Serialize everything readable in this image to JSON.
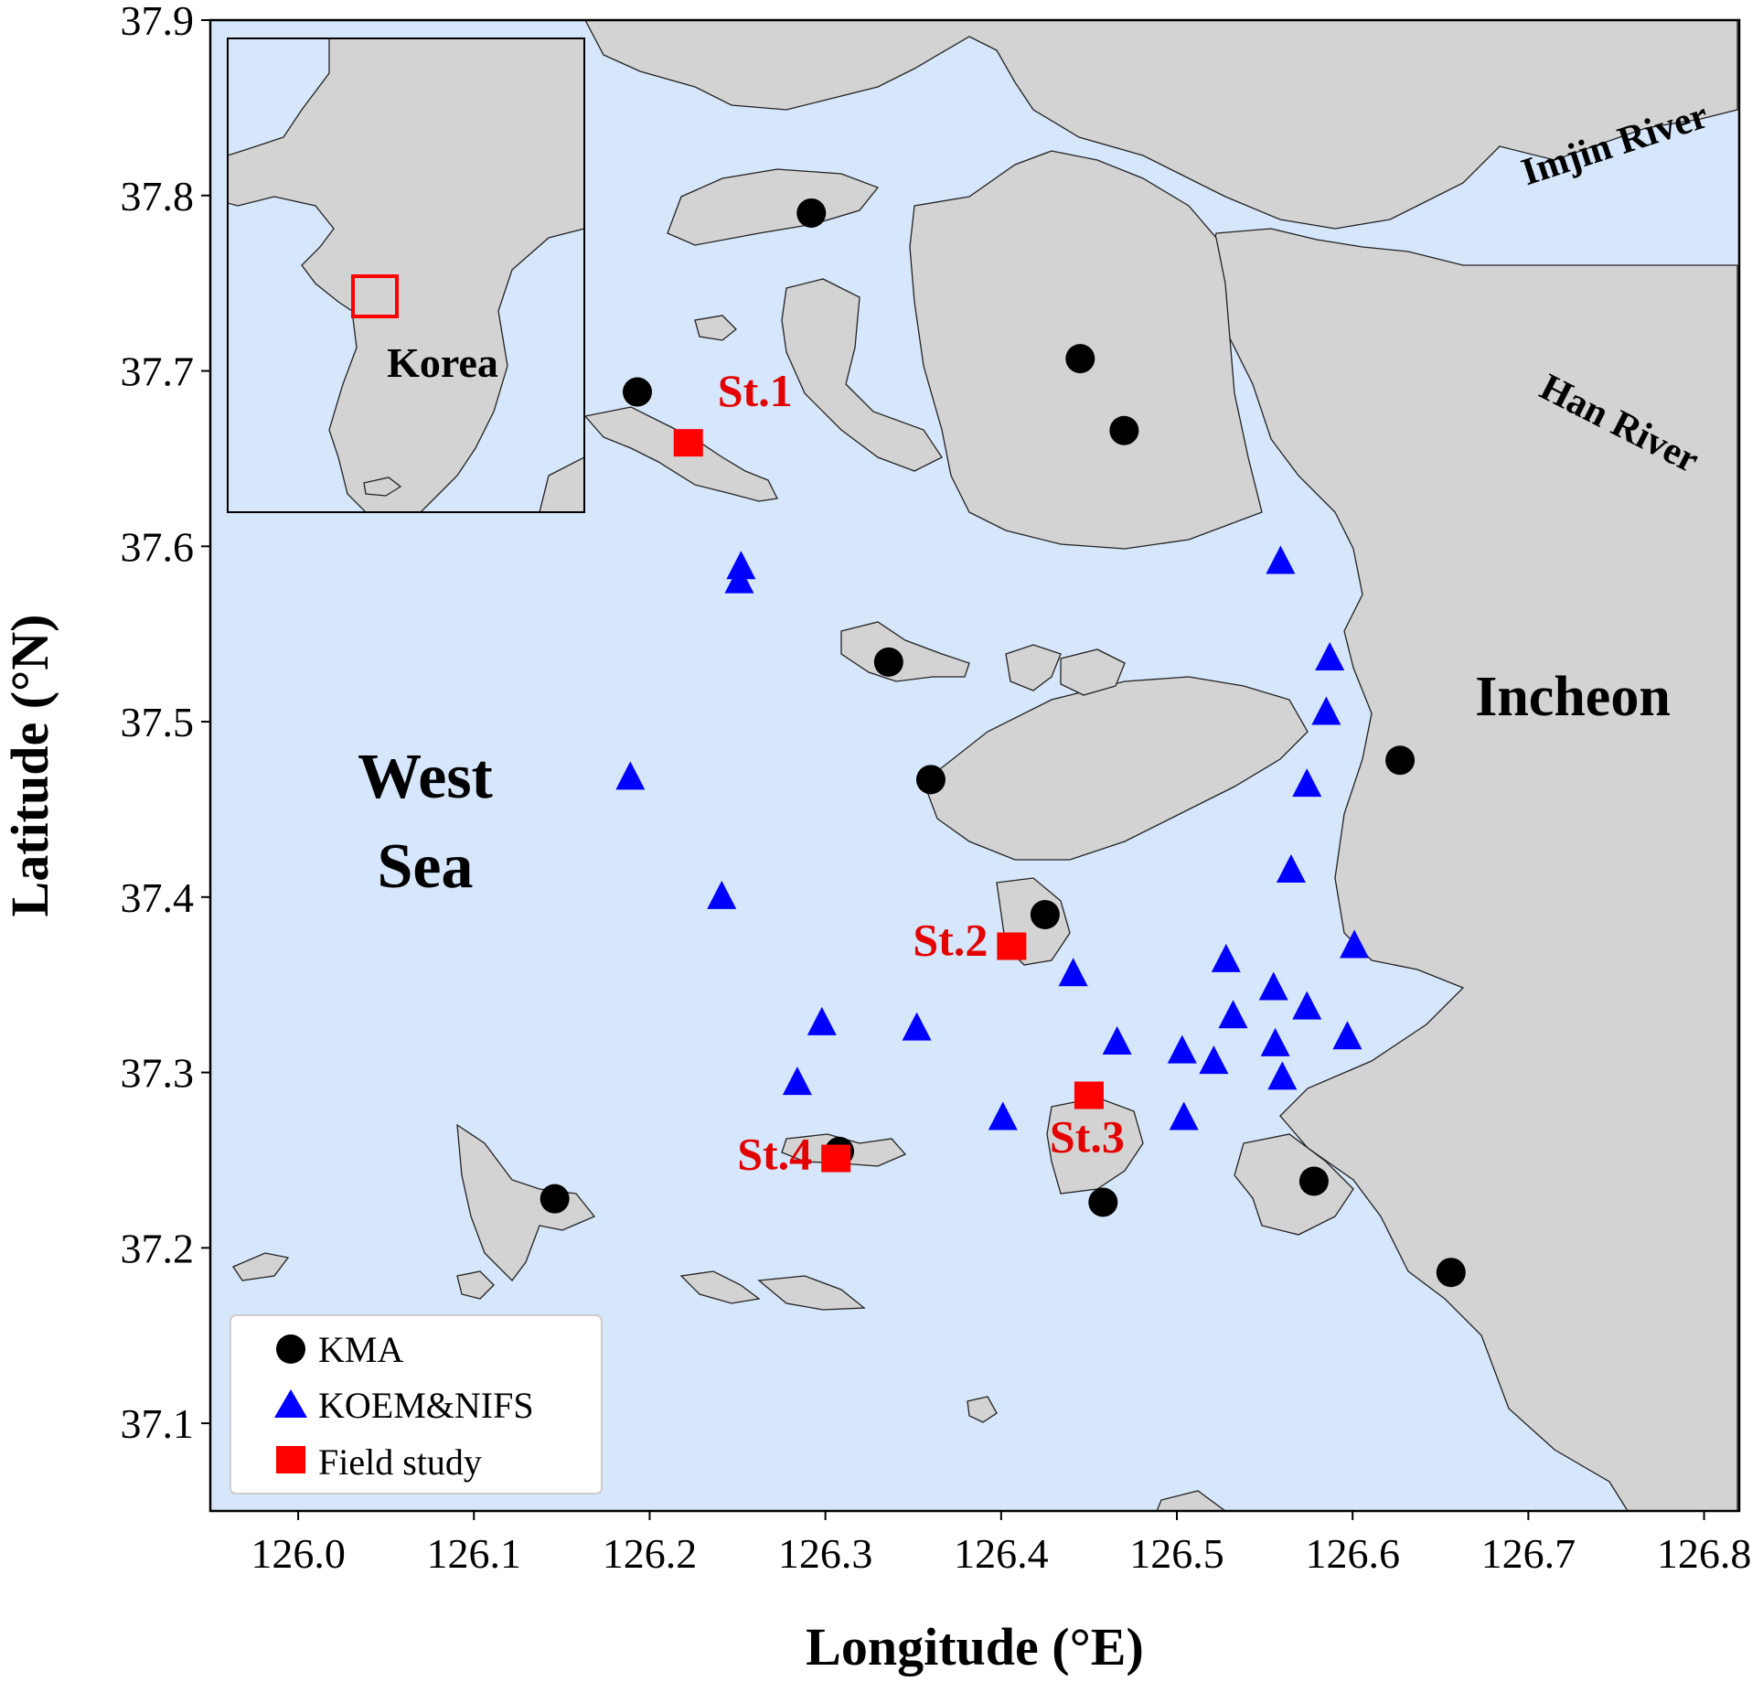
{
  "map": {
    "xaxis": {
      "label": "Longitude (°E)",
      "range": [
        125.95,
        126.82
      ],
      "ticks": [
        126.0,
        126.1,
        126.2,
        126.3,
        126.4,
        126.5,
        126.6,
        126.7,
        126.8
      ],
      "tick_labels": [
        "126.0",
        "126.1",
        "126.2",
        "126.3",
        "126.4",
        "126.5",
        "126.6",
        "126.7",
        "126.8"
      ]
    },
    "yaxis": {
      "label": "Latitude (°N)",
      "range": [
        37.05,
        37.9
      ],
      "ticks": [
        37.1,
        37.2,
        37.3,
        37.4,
        37.5,
        37.6,
        37.7,
        37.8,
        37.9
      ],
      "tick_labels": [
        "37.1",
        "37.2",
        "37.3",
        "37.4",
        "37.5",
        "37.6",
        "37.7",
        "37.8",
        "37.9"
      ]
    },
    "colors": {
      "sea": "#d6e6fb",
      "land": "#d3d3d3",
      "coast": "#222222",
      "kma": "#000000",
      "koem": "#0000ff",
      "field": "#ff0000",
      "station_label": "#e30000"
    },
    "place_labels": {
      "west_sea_line1": "West",
      "west_sea_line2": "Sea",
      "incheon": "Incheon",
      "imjin_river": "Imjin River",
      "han_river": "Han River"
    },
    "inset": {
      "label": "Korea"
    },
    "legend": {
      "position": "lower-left",
      "items": [
        {
          "marker": "circle",
          "label": "KMA"
        },
        {
          "marker": "triangle",
          "label": "KOEM&NIFS"
        },
        {
          "marker": "square",
          "label": "Field study"
        }
      ]
    },
    "kma_stations": [
      {
        "lon": 126.292,
        "lat": 37.79
      },
      {
        "lon": 126.445,
        "lat": 37.707
      },
      {
        "lon": 126.47,
        "lat": 37.666
      },
      {
        "lon": 126.193,
        "lat": 37.688
      },
      {
        "lon": 126.336,
        "lat": 37.534
      },
      {
        "lon": 126.36,
        "lat": 37.467
      },
      {
        "lon": 126.425,
        "lat": 37.39
      },
      {
        "lon": 126.627,
        "lat": 37.478
      },
      {
        "lon": 126.308,
        "lat": 37.255
      },
      {
        "lon": 126.146,
        "lat": 37.228
      },
      {
        "lon": 126.458,
        "lat": 37.226
      },
      {
        "lon": 126.578,
        "lat": 37.238
      },
      {
        "lon": 126.656,
        "lat": 37.186
      }
    ],
    "koem_nifs_stations": [
      {
        "lon": 126.252,
        "lat": 37.588
      },
      {
        "lon": 126.251,
        "lat": 37.58
      },
      {
        "lon": 126.559,
        "lat": 37.591
      },
      {
        "lon": 126.587,
        "lat": 37.536
      },
      {
        "lon": 126.585,
        "lat": 37.505
      },
      {
        "lon": 126.574,
        "lat": 37.464
      },
      {
        "lon": 126.189,
        "lat": 37.468
      },
      {
        "lon": 126.241,
        "lat": 37.4
      },
      {
        "lon": 126.565,
        "lat": 37.415
      },
      {
        "lon": 126.601,
        "lat": 37.372
      },
      {
        "lon": 126.528,
        "lat": 37.364
      },
      {
        "lon": 126.441,
        "lat": 37.356
      },
      {
        "lon": 126.555,
        "lat": 37.348
      },
      {
        "lon": 126.574,
        "lat": 37.337
      },
      {
        "lon": 126.532,
        "lat": 37.332
      },
      {
        "lon": 126.298,
        "lat": 37.328
      },
      {
        "lon": 126.352,
        "lat": 37.325
      },
      {
        "lon": 126.597,
        "lat": 37.32
      },
      {
        "lon": 126.466,
        "lat": 37.317
      },
      {
        "lon": 126.556,
        "lat": 37.316
      },
      {
        "lon": 126.503,
        "lat": 37.312
      },
      {
        "lon": 126.521,
        "lat": 37.306
      },
      {
        "lon": 126.56,
        "lat": 37.297
      },
      {
        "lon": 126.284,
        "lat": 37.294
      },
      {
        "lon": 126.401,
        "lat": 37.274
      },
      {
        "lon": 126.504,
        "lat": 37.274
      }
    ],
    "field_stations": [
      {
        "id": "St.1",
        "lon": 126.222,
        "lat": 37.659
      },
      {
        "id": "St.2",
        "lon": 126.406,
        "lat": 37.372
      },
      {
        "id": "St.3",
        "lon": 126.45,
        "lat": 37.287
      },
      {
        "id": "St.4",
        "lon": 126.306,
        "lat": 37.251
      }
    ]
  }
}
